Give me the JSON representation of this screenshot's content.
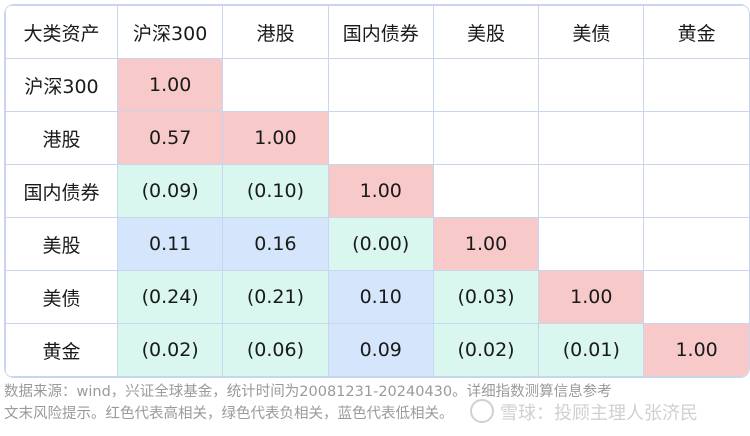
{
  "chart_data": {
    "type": "heatmap",
    "corner_label": "大类资产",
    "columns": [
      "沪深300",
      "港股",
      "国内债券",
      "美股",
      "美债",
      "黄金"
    ],
    "rows": [
      "沪深300",
      "港股",
      "国内债券",
      "美股",
      "美债",
      "黄金"
    ],
    "values": [
      [
        1.0,
        null,
        null,
        null,
        null,
        null
      ],
      [
        0.57,
        1.0,
        null,
        null,
        null,
        null
      ],
      [
        -0.09,
        -0.1,
        1.0,
        null,
        null,
        null
      ],
      [
        0.11,
        0.16,
        0.0,
        1.0,
        null,
        null
      ],
      [
        -0.24,
        -0.21,
        0.1,
        -0.03,
        1.0,
        null
      ],
      [
        -0.02,
        -0.06,
        0.09,
        -0.02,
        -0.01,
        1.0
      ]
    ],
    "value_labels": [
      [
        "1.00",
        "",
        "",
        "",
        "",
        ""
      ],
      [
        "0.57",
        "1.00",
        "",
        "",
        "",
        ""
      ],
      [
        "(0.09)",
        "(0.10)",
        "1.00",
        "",
        "",
        ""
      ],
      [
        "0.11",
        "0.16",
        "(0.00)",
        "1.00",
        "",
        ""
      ],
      [
        "(0.24)",
        "(0.21)",
        "0.10",
        "(0.03)",
        "1.00",
        ""
      ],
      [
        "(0.02)",
        "(0.06)",
        "0.09",
        "(0.02)",
        "(0.01)",
        "1.00"
      ]
    ],
    "cell_categories": [
      [
        "strong",
        "empty",
        "empty",
        "empty",
        "empty",
        "empty"
      ],
      [
        "strong",
        "strong",
        "empty",
        "empty",
        "empty",
        "empty"
      ],
      [
        "neg",
        "neg",
        "strong",
        "empty",
        "empty",
        "empty"
      ],
      [
        "weak",
        "weak",
        "neg",
        "strong",
        "empty",
        "empty"
      ],
      [
        "neg",
        "neg",
        "weak",
        "neg",
        "strong",
        "empty"
      ],
      [
        "neg",
        "neg",
        "weak",
        "neg",
        "neg",
        "strong"
      ]
    ],
    "colors": {
      "strong": "#f8c9c9",
      "neg": "#d9f7ee",
      "weak": "#d5e5fb",
      "grid": "#c7d6ee"
    }
  },
  "footnote": {
    "line1": "数据来源：wind，兴证全球基金，统计时间为20081231-20240430。详细指数测算信息参考",
    "line2": "文末风险提示。红色代表高相关，绿色代表负相关，蓝色代表低相关。"
  },
  "watermark": {
    "text": "雪球：投顾主理人张济民"
  }
}
